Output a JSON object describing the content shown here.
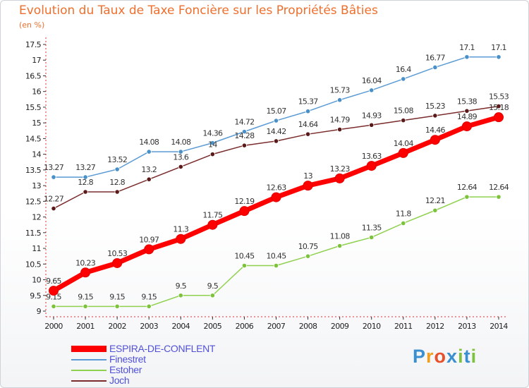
{
  "chart_data": {
    "type": "line",
    "title": "Evolution du Taux de Taxe Foncière sur les Propriétés Bâties",
    "subtitle": "(en %)",
    "x": [
      "2000",
      "2001",
      "2002",
      "2003",
      "2004",
      "2005",
      "2006",
      "2007",
      "2008",
      "2009",
      "2010",
      "2011",
      "2012",
      "2013",
      "2014"
    ],
    "ylim": [
      9,
      17.5
    ],
    "yticks": [
      "9",
      "9.5",
      "10",
      "10.5",
      "11",
      "11.5",
      "12",
      "12.5",
      "13",
      "13.5",
      "14",
      "14.5",
      "15",
      "15.5",
      "16",
      "16.5",
      "17",
      "17.5"
    ],
    "grid": false,
    "series": [
      {
        "name": "Finestret",
        "color": "#5b9bd5",
        "marker": "#4a90c8",
        "values": [
          13.27,
          13.27,
          13.52,
          14.08,
          14.08,
          14.36,
          14.72,
          15.07,
          15.37,
          15.73,
          16.04,
          16.4,
          16.77,
          17.1,
          17.1
        ],
        "labels": [
          "13.27",
          "13.27",
          "13.52",
          "14.08",
          "14.08",
          "14.36",
          "14.72",
          "15.07",
          "15.37",
          "15.73",
          "16.04",
          "16.4",
          "16.77",
          "17.1",
          "17.1"
        ]
      },
      {
        "name": "Joch",
        "color": "#7a2b2b",
        "marker": "#5a1a1a",
        "values": [
          12.27,
          12.8,
          12.8,
          13.2,
          13.6,
          14,
          14.28,
          14.42,
          14.64,
          14.79,
          14.93,
          15.08,
          15.23,
          15.38,
          15.53
        ],
        "labels": [
          "12.27",
          "12.8",
          "12.8",
          "13.2",
          "13.6",
          "14",
          "14.28",
          "14.42",
          "14.64",
          "14.79",
          "14.93",
          "15.08",
          "15.23",
          "15.38",
          "15.53"
        ]
      },
      {
        "name": "Estoher",
        "color": "#8fd14f",
        "marker": "#7cc23a",
        "values": [
          9.15,
          9.15,
          9.15,
          9.15,
          9.5,
          9.5,
          10.45,
          10.45,
          10.75,
          11.08,
          11.35,
          11.8,
          12.21,
          12.64,
          12.64
        ],
        "labels": [
          "9.15",
          "9.15",
          "9.15",
          "9.15",
          "9.5",
          "9.5",
          "10.45",
          "10.45",
          "10.75",
          "11.08",
          "11.35",
          "11.8",
          "12.21",
          "12.64",
          "12.64"
        ]
      },
      {
        "name": "ESPIRA-DE-CONFLENT",
        "color": "#ff0000",
        "marker": "#ff0000",
        "values": [
          9.65,
          10.23,
          10.53,
          10.97,
          11.3,
          11.75,
          12.19,
          12.63,
          13,
          13.23,
          13.63,
          14.04,
          14.46,
          14.89,
          15.18
        ],
        "labels": [
          "9.65",
          "10.23",
          "10.53",
          "10.97",
          "11.3",
          "11.75",
          "12.19",
          "12.63",
          "13",
          "13.23",
          "13.63",
          "14.04",
          "14.46",
          "14.89",
          "15.18"
        ]
      }
    ]
  },
  "legend": {
    "items": [
      {
        "label": "ESPIRA-DE-CONFLENT",
        "color": "#ff0000"
      },
      {
        "label": "Finestret",
        "color": "#5b9bd5"
      },
      {
        "label": "Estoher",
        "color": "#8fd14f"
      },
      {
        "label": "Joch",
        "color": "#7a2b2b"
      }
    ]
  },
  "logo": {
    "text": "Proxiti",
    "letters": [
      "P",
      "r",
      "o",
      "x",
      "i",
      "t",
      "i"
    ],
    "colors": [
      "#3a8fd0",
      "#f0a020",
      "#e8502a",
      "#3a8fd0",
      "#7cc23a",
      "#3a8fd0",
      "#7cc23a"
    ]
  }
}
